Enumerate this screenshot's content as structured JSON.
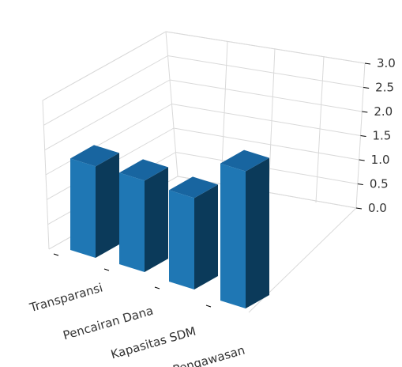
{
  "chart_data": {
    "type": "bar",
    "categories": [
      "Transparansi",
      "Pencairan Dana",
      "Kapasitas SDM",
      "Pengawasan"
    ],
    "values": [
      2.0,
      2.0,
      2.0,
      3.0
    ],
    "zlim": [
      0.0,
      3.0
    ],
    "z_ticks": [
      "0.0",
      "0.5",
      "1.0",
      "1.5",
      "2.0",
      "2.5",
      "3.0"
    ],
    "grid": true,
    "bar_color": "#1f77b4",
    "bar_side_color": "#0b3a5a",
    "bar_top_color": "#1865a0",
    "pane_color": "#d9d9d9"
  }
}
